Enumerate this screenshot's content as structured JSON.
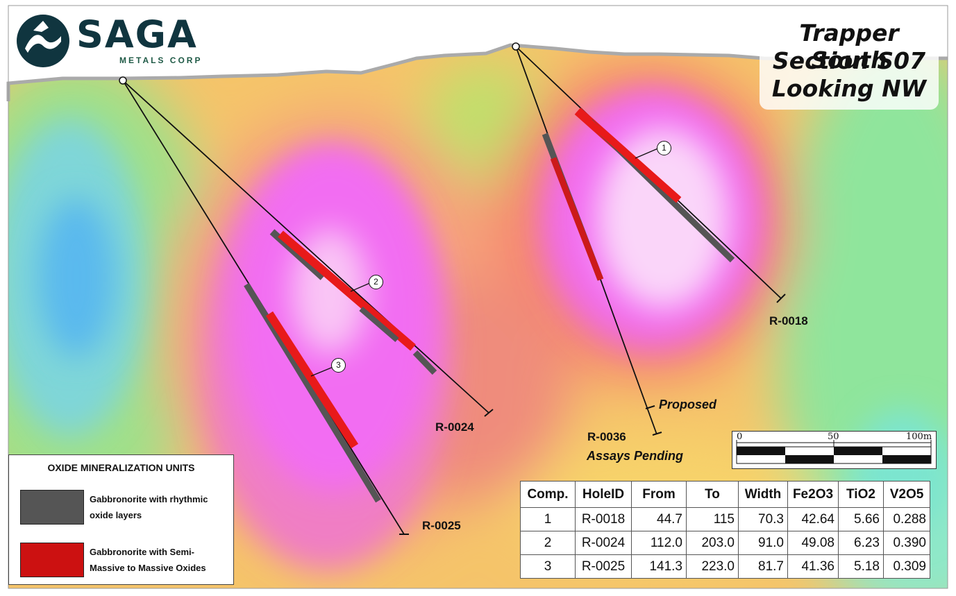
{
  "brand": {
    "name": "SAGA",
    "subtitle": "METALS CORP"
  },
  "section_title": {
    "line1": "Trapper South",
    "line2": "Section S07",
    "line3": "Looking NW"
  },
  "colors": {
    "semi_massive_oxide": "#e81a1a",
    "rhythmic_oxide": "#555555",
    "high_anomaly": "#f26df2",
    "low_anomaly": "#5ab9ee",
    "logo": "#10353f"
  },
  "holes": {
    "r0018": "R-0018",
    "r0024": "R-0024",
    "r0025": "R-0025",
    "r0036": "R-0036"
  },
  "annotations": {
    "proposed": "Proposed",
    "assays_pending": "Assays Pending"
  },
  "components": [
    "1",
    "2",
    "3"
  ],
  "scale_bar": {
    "tick_0": "0",
    "tick_50": "50",
    "tick_100": "100m"
  },
  "legend": {
    "title": "OXIDE MINERALIZATION UNITS",
    "items": [
      {
        "label_line1": "Gabbronorite with rhythmic",
        "label_line2": "oxide layers"
      },
      {
        "label_line1": "Gabbronorite with Semi-",
        "label_line2": "Massive to Massive Oxides"
      }
    ]
  },
  "assay_table": {
    "headers": [
      "Comp.",
      "HoleID",
      "From",
      "To",
      "Width",
      "Fe2O3",
      "TiO2",
      "V2O5"
    ],
    "rows": [
      [
        "1",
        "R-0018",
        "44.7",
        "115",
        "70.3",
        "42.64",
        "5.66",
        "0.288"
      ],
      [
        "2",
        "R-0024",
        "112.0",
        "203.0",
        "91.0",
        "49.08",
        "6.23",
        "0.390"
      ],
      [
        "3",
        "R-0025",
        "141.3",
        "223.0",
        "81.7",
        "41.36",
        "5.18",
        "0.309"
      ]
    ]
  }
}
